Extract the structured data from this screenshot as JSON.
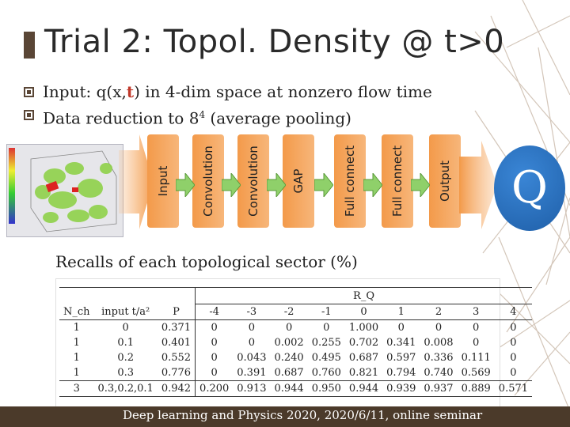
{
  "slide": {
    "title": "Trial 2: Topol. Density @ t>0",
    "bullet1": {
      "pre": "Input: q(x,",
      "highlight": "t",
      "post": ") in 4-dim space at nonzero flow time"
    },
    "bullet2": {
      "pre": "Data reduction to 8",
      "sup": "4",
      "post": " (average pooling)"
    },
    "colors": {
      "accent": "#5a4636",
      "layer": "#f39a4a",
      "arrow": "#8fd06a",
      "output_circle": "#2a72c4",
      "highlight": "#c0392b",
      "footer": "#4b3a2a"
    }
  },
  "network": {
    "layers": [
      "Input",
      "Convolution",
      "Convolution",
      "GAP",
      "Full connect",
      "Full connect",
      "Output"
    ],
    "output_symbol": "Q"
  },
  "recalls_caption": "Recalls of each topological sector (%)",
  "table": {
    "col_nch": "N_ch",
    "col_input": "input t/a²",
    "col_P": "P",
    "group_label": "R_Q",
    "q_headers": [
      "-4",
      "-3",
      "-2",
      "-1",
      "0",
      "1",
      "2",
      "3",
      "4"
    ],
    "rows": [
      {
        "nch": "1",
        "input": "0",
        "P": "0.371",
        "vals": [
          "0",
          "0",
          "0",
          "0",
          "1.000",
          "0",
          "0",
          "0",
          "0"
        ]
      },
      {
        "nch": "1",
        "input": "0.1",
        "P": "0.401",
        "vals": [
          "0",
          "0",
          "0.002",
          "0.255",
          "0.702",
          "0.341",
          "0.008",
          "0",
          "0"
        ]
      },
      {
        "nch": "1",
        "input": "0.2",
        "P": "0.552",
        "vals": [
          "0",
          "0.043",
          "0.240",
          "0.495",
          "0.687",
          "0.597",
          "0.336",
          "0.111",
          "0"
        ]
      },
      {
        "nch": "1",
        "input": "0.3",
        "P": "0.776",
        "vals": [
          "0",
          "0.391",
          "0.687",
          "0.760",
          "0.821",
          "0.794",
          "0.740",
          "0.569",
          "0"
        ]
      },
      {
        "nch": "3",
        "input": "0.3,0.2,0.1",
        "P": "0.942",
        "vals": [
          "0.200",
          "0.913",
          "0.944",
          "0.950",
          "0.944",
          "0.939",
          "0.937",
          "0.889",
          "0.571"
        ]
      }
    ]
  },
  "footer": "Deep learning and Physics 2020, 2020/6/11, online seminar"
}
